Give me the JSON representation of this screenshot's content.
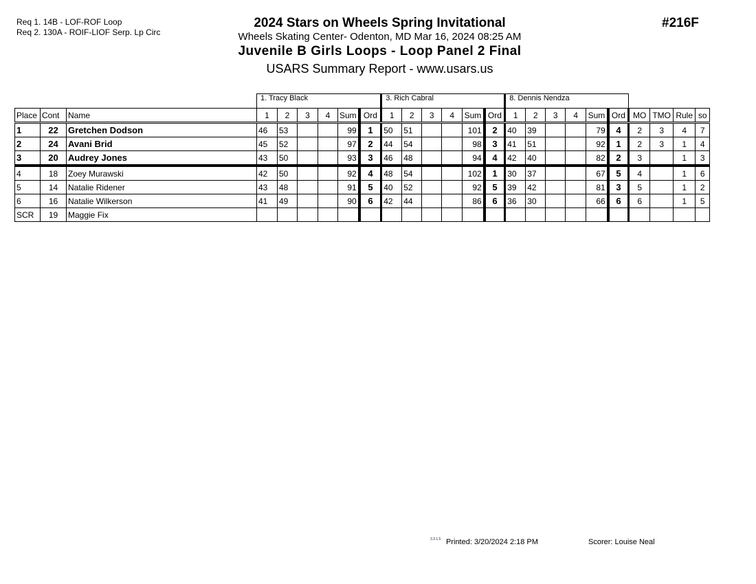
{
  "header": {
    "requirements": [
      "Req  1.  14B - LOF-ROF Loop",
      "Req  2.  130A - ROIF-LIOF Serp. Lp Circ"
    ],
    "title": "2024 Stars on Wheels Spring Invitational",
    "venue": "Wheels Skating Center- Odenton, MD  Mar 16, 2024  08:25 AM",
    "event": "Juvenile B Girls Loops - Loop Panel 2 Final",
    "report": "USARS Summary Report - www.usars.us",
    "event_number": "#216F"
  },
  "table": {
    "judges": [
      "1. Tracy Black",
      "3.  Rich Cabral",
      "8.  Dennis Nendza"
    ],
    "columns": {
      "place": "Place",
      "cont": "Cont",
      "name": "Name",
      "scores": [
        "1",
        "2",
        "3",
        "4",
        "Sum",
        "Ord"
      ],
      "mo": "MO",
      "tmo": "TMO",
      "rule": "Rule",
      "so": "so"
    },
    "rows": [
      {
        "place": "1",
        "cont": "22",
        "name": "Gretchen Dodson",
        "bold": true,
        "judges": [
          [
            "46",
            "53",
            "",
            "",
            "99",
            "1"
          ],
          [
            "50",
            "51",
            "",
            "",
            "101",
            "2"
          ],
          [
            "40",
            "39",
            "",
            "",
            "79",
            "4"
          ]
        ],
        "mo": "2",
        "tmo": "3",
        "rule": "4",
        "so": "7"
      },
      {
        "place": "2",
        "cont": "24",
        "name": "Avani Brid",
        "bold": true,
        "judges": [
          [
            "45",
            "52",
            "",
            "",
            "97",
            "2"
          ],
          [
            "44",
            "54",
            "",
            "",
            "98",
            "3"
          ],
          [
            "41",
            "51",
            "",
            "",
            "92",
            "1"
          ]
        ],
        "mo": "2",
        "tmo": "3",
        "rule": "1",
        "so": "4"
      },
      {
        "place": "3",
        "cont": "20",
        "name": "Audrey Jones",
        "bold": true,
        "judges": [
          [
            "43",
            "50",
            "",
            "",
            "93",
            "3"
          ],
          [
            "46",
            "48",
            "",
            "",
            "94",
            "4"
          ],
          [
            "42",
            "40",
            "",
            "",
            "82",
            "2"
          ]
        ],
        "mo": "3",
        "tmo": "",
        "rule": "1",
        "so": "3"
      },
      {
        "place": "4",
        "cont": "18",
        "name": "Zoey Murawski",
        "bold": false,
        "judges": [
          [
            "42",
            "50",
            "",
            "",
            "92",
            "4"
          ],
          [
            "48",
            "54",
            "",
            "",
            "102",
            "1"
          ],
          [
            "30",
            "37",
            "",
            "",
            "67",
            "5"
          ]
        ],
        "mo": "4",
        "tmo": "",
        "rule": "1",
        "so": "6"
      },
      {
        "place": "5",
        "cont": "14",
        "name": "Natalie Ridener",
        "bold": false,
        "judges": [
          [
            "43",
            "48",
            "",
            "",
            "91",
            "5"
          ],
          [
            "40",
            "52",
            "",
            "",
            "92",
            "5"
          ],
          [
            "39",
            "42",
            "",
            "",
            "81",
            "3"
          ]
        ],
        "mo": "5",
        "tmo": "",
        "rule": "1",
        "so": "2"
      },
      {
        "place": "6",
        "cont": "16",
        "name": "Natalie Wilkerson",
        "bold": false,
        "judges": [
          [
            "41",
            "49",
            "",
            "",
            "90",
            "6"
          ],
          [
            "42",
            "44",
            "",
            "",
            "86",
            "6"
          ],
          [
            "36",
            "30",
            "",
            "",
            "66",
            "6"
          ]
        ],
        "mo": "6",
        "tmo": "",
        "rule": "1",
        "so": "5"
      },
      {
        "place": "SCR",
        "cont": "19",
        "name": "Maggie Fix",
        "bold": false,
        "judges": [
          [
            "",
            "",
            "",
            "",
            "",
            ""
          ],
          [
            "",
            "",
            "",
            "",
            "",
            ""
          ],
          [
            "",
            "",
            "",
            "",
            "",
            ""
          ]
        ],
        "mo": "",
        "tmo": "",
        "rule": "",
        "so": ""
      }
    ]
  },
  "footer": {
    "version": "3.3.1.5",
    "printed": "Printed:  3/20/2024  2:18 PM",
    "scorer": "Scorer:   Louise Neal"
  }
}
